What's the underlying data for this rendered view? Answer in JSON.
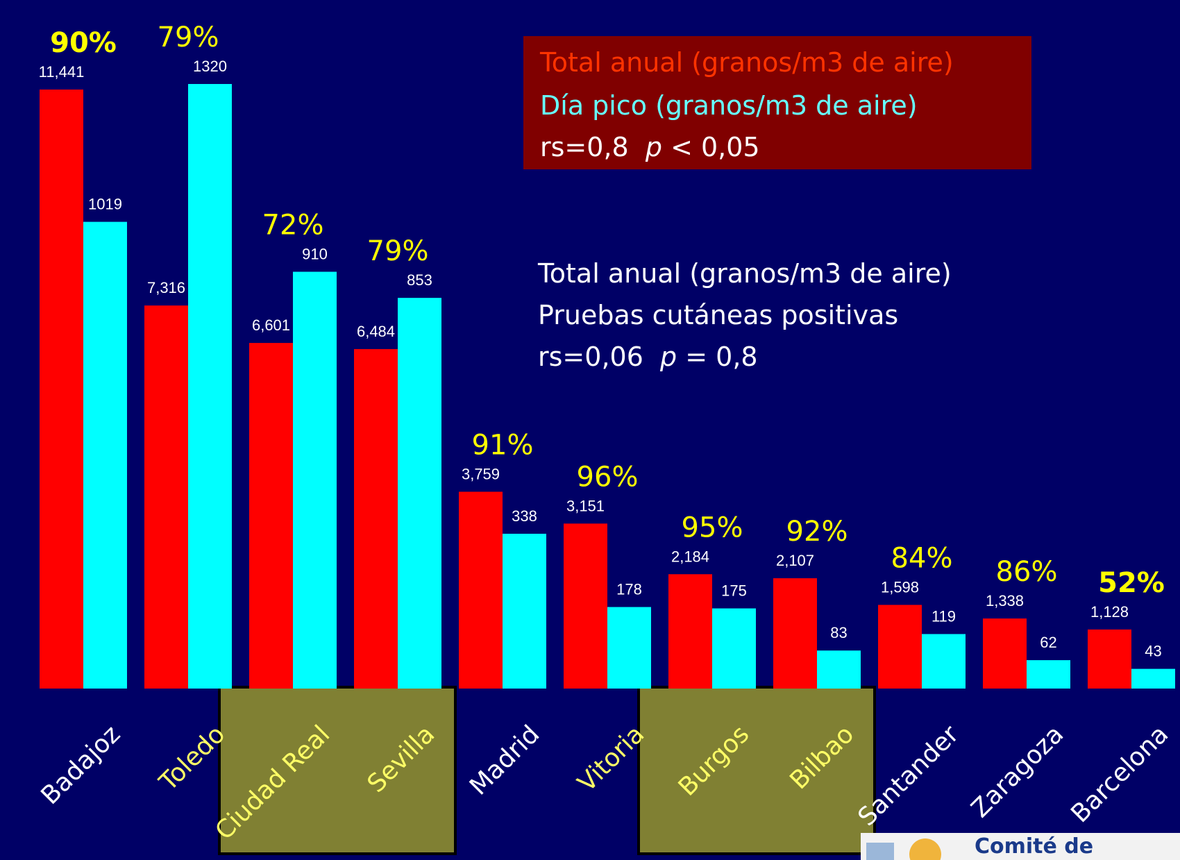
{
  "chart_data": {
    "type": "bar",
    "categories": [
      "Badajoz",
      "Toledo",
      "Ciudad Real",
      "Sevilla",
      "Madrid",
      "Vitoria",
      "Burgos",
      "Bilbao",
      "Santander",
      "Zaragoza",
      "Barcelona"
    ],
    "series": [
      {
        "values": [
          11441,
          7316,
          6601,
          6484,
          3759,
          3151,
          2184,
          2107,
          1598,
          1338,
          1128
        ],
        "color": "#ff0000"
      },
      {
        "values": [
          1019,
          1320,
          910,
          853,
          338,
          178,
          175,
          83,
          119,
          62,
          43
        ],
        "color": "#00ffff"
      }
    ],
    "series_labels": [
      [
        "11,441",
        "7,316",
        "6,601",
        "6,484",
        "3,759",
        "3,151",
        "2,184",
        "2,107",
        "1,598",
        "1,338",
        "1,128"
      ],
      [
        "1019",
        "1320",
        "910",
        "853",
        "338",
        "178",
        "175",
        "83",
        "119",
        "62",
        "43"
      ]
    ],
    "percent_labels": [
      "90%",
      "79%",
      "72%",
      "79%",
      "91%",
      "96%",
      "95%",
      "92%",
      "84%",
      "86%",
      "52%"
    ],
    "percent_bold": [
      true,
      false,
      false,
      false,
      false,
      false,
      false,
      false,
      false,
      false,
      true
    ],
    "highlight_groups": [
      [
        "Toledo",
        "Ciudad Real",
        "Sevilla"
      ],
      [
        "Vitoria",
        "Burgos",
        "Bilbao"
      ]
    ],
    "highlight_color": "#808033"
  },
  "legend": {
    "line1": "Total anual  (granos/m3 de aire)",
    "line2": "Día pico (granos/m3 de aire)",
    "line3_prefix": "rs=0,8  ",
    "line3_p": "p",
    "line3_suffix": " < 0,05",
    "color1": "#ff3300",
    "color2": "#66ffff",
    "color3": "#ffffff"
  },
  "correlation2": {
    "line1": "Total anual  (granos/m3 de aire)",
    "line2": "Pruebas cutáneas positivas",
    "line3_prefix": "rs=0,06  ",
    "line3_p": "p",
    "line3_suffix": " = 0,8"
  },
  "logo": {
    "text": "Comité de"
  }
}
